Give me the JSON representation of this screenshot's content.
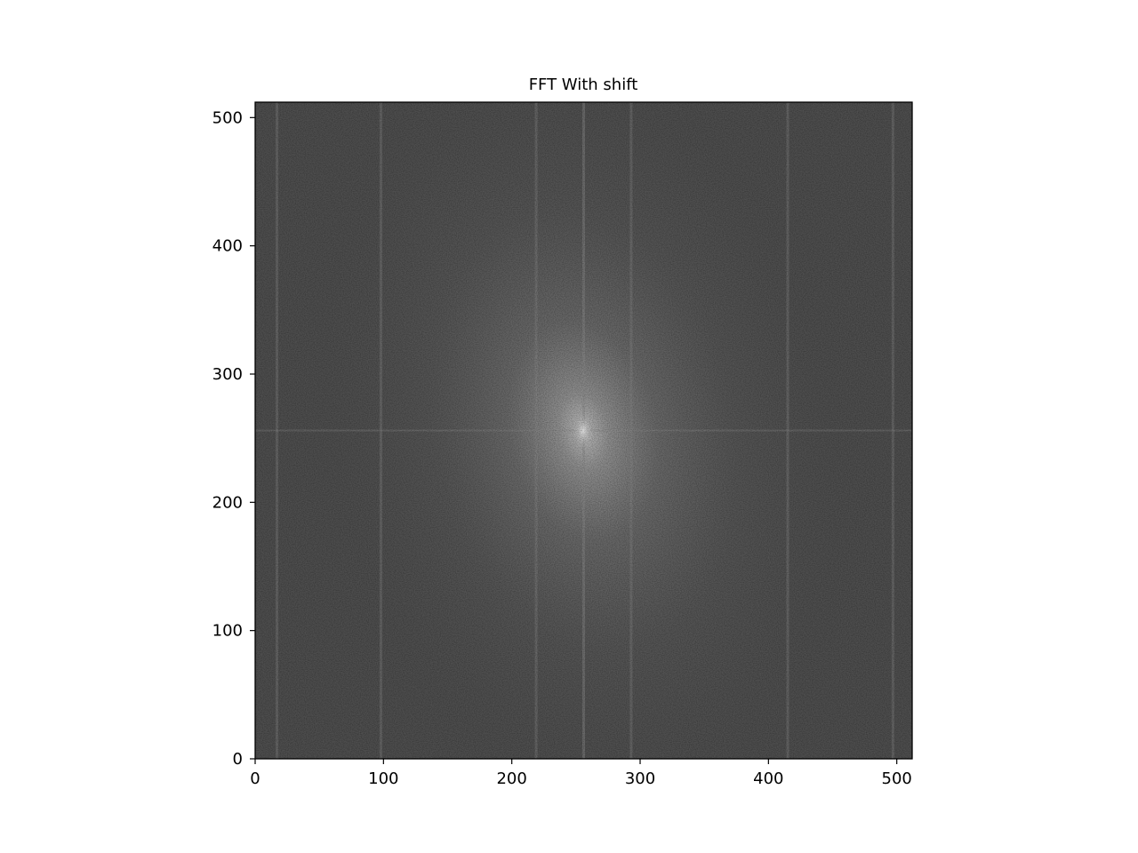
{
  "chart_data": {
    "type": "heatmap",
    "title": "FFT With shift",
    "xlabel": "",
    "ylabel": "",
    "colormap": "gray",
    "grid": false,
    "image_shape": [
      512,
      512
    ],
    "xlim": [
      0,
      512
    ],
    "ylim": [
      512,
      0
    ],
    "x_ticks": [
      0,
      100,
      200,
      300,
      400,
      500
    ],
    "y_ticks": [
      0,
      100,
      200,
      300,
      400,
      500
    ],
    "x_tick_labels": [
      "0",
      "100",
      "200",
      "300",
      "400",
      "500"
    ],
    "y_tick_labels": [
      "0",
      "100",
      "200",
      "300",
      "400",
      "500"
    ],
    "background_color": "#4e4e4e",
    "center_bright_spot": [
      256,
      256
    ],
    "vertical_streaks_x": [
      17,
      98,
      219,
      256,
      293,
      415,
      497
    ],
    "horizontal_streak_y": 256
  }
}
